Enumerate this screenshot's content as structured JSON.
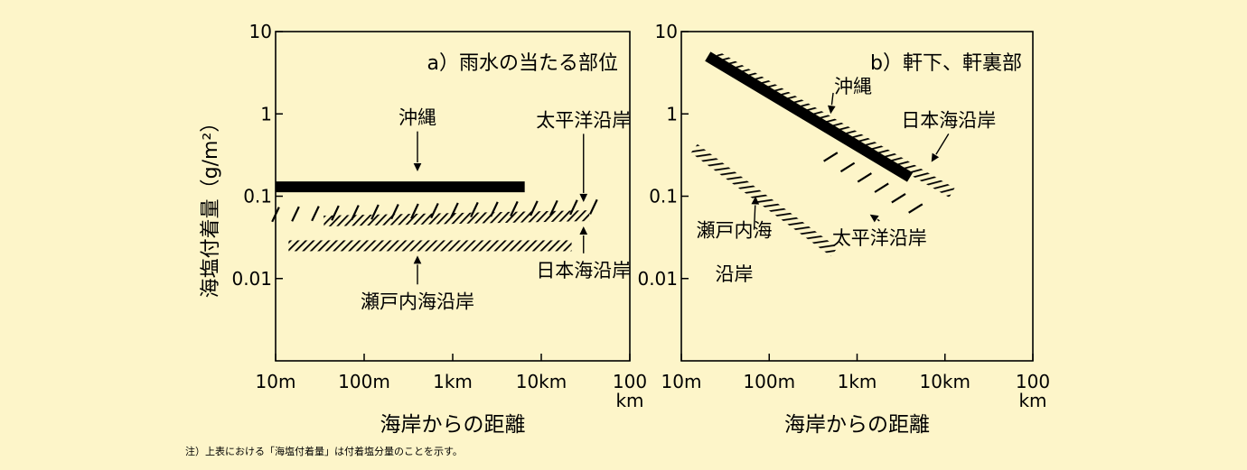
{
  "page": {
    "background": "#fdf5c9",
    "note": "注）上表における「海塩付着量」は付着塩分量のことを示す。"
  },
  "chart_data": [
    {
      "type": "line",
      "title": "a）雨水の当たる部位",
      "ylabel": "海塩付着量（g/m²）",
      "xlabel": "海岸からの距離",
      "x_scale": "log",
      "y_scale": "log",
      "x_unit": "m",
      "xlim": [
        10,
        100000
      ],
      "ylim": [
        0.001,
        10
      ],
      "x_ticks": [
        {
          "value": 10,
          "lines": [
            "10m"
          ]
        },
        {
          "value": 100,
          "lines": [
            "100m"
          ]
        },
        {
          "value": 1000,
          "lines": [
            "1km"
          ]
        },
        {
          "value": 10000,
          "lines": [
            "10km"
          ]
        },
        {
          "value": 100000,
          "lines": [
            "100",
            "km"
          ]
        }
      ],
      "y_ticks": [
        {
          "value": 10,
          "label": "10"
        },
        {
          "value": 1,
          "label": "1"
        },
        {
          "value": 0.1,
          "label": "0.1"
        },
        {
          "value": 0.01,
          "label": "0.01"
        }
      ],
      "grid": false,
      "legend": "none",
      "series": [
        {
          "name": "沖縄",
          "style": "solid",
          "x": [
            10,
            6500
          ],
          "y": [
            0.13,
            0.13
          ]
        },
        {
          "name": "太平洋沿岸",
          "style": "dashed",
          "x": [
            10,
            60000
          ],
          "y": [
            0.06,
            0.075
          ]
        },
        {
          "name": "日本海沿岸",
          "style": "hatch",
          "x": [
            35,
            35000
          ],
          "y": [
            0.05,
            0.058
          ]
        },
        {
          "name": "瀬戸内海沿岸",
          "style": "hatch",
          "x": [
            14,
            22000
          ],
          "y": [
            0.025,
            0.025
          ]
        }
      ],
      "annotations": [
        {
          "text": "沖縄",
          "x": 400,
          "y": 0.75,
          "arrow_to": [
            400,
            0.2
          ]
        },
        {
          "text": "太平洋沿岸",
          "x": 30000,
          "y": 0.7,
          "arrow_to": [
            30000,
            0.085
          ]
        },
        {
          "text": "日本海沿岸",
          "x": 30000,
          "y": 0.0105,
          "arrow_to": [
            30000,
            0.043
          ]
        },
        {
          "text": "瀬戸内海沿岸",
          "x": 400,
          "y": 0.0044,
          "arrow_to": [
            400,
            0.019
          ]
        }
      ]
    },
    {
      "type": "line",
      "title": "b）軒下、軒裏部",
      "xlabel": "海岸からの距離",
      "x_scale": "log",
      "y_scale": "log",
      "x_unit": "m",
      "xlim": [
        10,
        100000
      ],
      "ylim": [
        0.001,
        10
      ],
      "x_ticks": [
        {
          "value": 10,
          "lines": [
            "10m"
          ]
        },
        {
          "value": 100,
          "lines": [
            "100m"
          ]
        },
        {
          "value": 1000,
          "lines": [
            "1km"
          ]
        },
        {
          "value": 10000,
          "lines": [
            "10km"
          ]
        },
        {
          "value": 100000,
          "lines": [
            "100",
            "km"
          ]
        }
      ],
      "y_ticks": [
        {
          "value": 10,
          "label": "10"
        },
        {
          "value": 1,
          "label": "1"
        },
        {
          "value": 0.1,
          "label": "0.1"
        },
        {
          "value": 0.01,
          "label": "0.01"
        }
      ],
      "grid": false,
      "legend": "none",
      "series": [
        {
          "name": "沖縄",
          "style": "solid",
          "x": [
            20,
            4000
          ],
          "y": [
            5.0,
            0.17
          ]
        },
        {
          "name": "日本海沿岸",
          "style": "hatch",
          "x": [
            25,
            12000
          ],
          "y": [
            5.0,
            0.11
          ]
        },
        {
          "name": "太平洋沿岸",
          "style": "dashed",
          "x": [
            500,
            6000
          ],
          "y": [
            0.3,
            0.06
          ]
        },
        {
          "name": "瀬戸内海沿岸",
          "style": "hatch",
          "x": [
            14,
            550
          ],
          "y": [
            0.38,
            0.021
          ]
        }
      ],
      "annotations": [
        {
          "text": "沖縄",
          "x": 900,
          "y": 1.8,
          "arrow_to": [
            500,
            1.0
          ]
        },
        {
          "text": "日本海沿岸",
          "x": 11000,
          "y": 0.7,
          "arrow_to": [
            7000,
            0.26
          ]
        },
        {
          "text": "太平洋沿岸",
          "x": 1800,
          "y": 0.026,
          "arrow_to": [
            1400,
            0.06
          ]
        },
        {
          "text": "瀬戸内海",
          "x": 40,
          "y": 0.032,
          "arrow_to": [
            70,
            0.1
          ]
        },
        {
          "text": "沿岸",
          "x": 40,
          "y": 0.0095
        }
      ]
    }
  ]
}
